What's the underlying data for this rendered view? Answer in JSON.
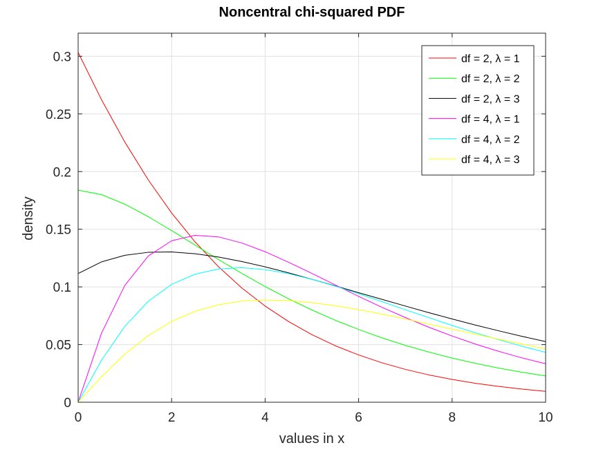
{
  "chart_data": {
    "type": "line",
    "title": "Noncentral chi-squared PDF",
    "xlabel": "values in x",
    "ylabel": "density",
    "xlim": [
      0,
      10
    ],
    "ylim": [
      0,
      0.32
    ],
    "xticks": [
      0,
      2,
      4,
      6,
      8,
      10
    ],
    "xtick_labels": [
      "0",
      "2",
      "4",
      "6",
      "8",
      "10"
    ],
    "yticks": [
      0,
      0.05,
      0.1,
      0.15,
      0.2,
      0.25,
      0.3
    ],
    "ytick_labels": [
      "0",
      "0.05",
      "0.1",
      "0.15",
      "0.2",
      "0.25",
      "0.3"
    ],
    "grid": true,
    "legend_position": "top-right",
    "x": [
      0,
      0.5,
      1,
      1.5,
      2,
      2.5,
      3,
      3.5,
      4,
      4.5,
      5,
      5.5,
      6,
      6.5,
      7,
      7.5,
      8,
      8.5,
      9,
      9.5,
      10
    ],
    "series": [
      {
        "name": "df = 2, λ = 1",
        "color": "#ff0000",
        "values": [
          0.3033,
          0.2623,
          0.2255,
          0.1928,
          0.1641,
          0.1391,
          0.1176,
          0.0991,
          0.0834,
          0.07,
          0.0586,
          0.049,
          0.041,
          0.0342,
          0.0285,
          0.0237,
          0.0198,
          0.0164,
          0.0137,
          0.0114,
          0.0094
        ]
      },
      {
        "name": "df = 2, λ = 2",
        "color": "#00ff00",
        "values": [
          0.1839,
          0.18,
          0.1717,
          0.1609,
          0.1488,
          0.1363,
          0.1238,
          0.1117,
          0.1003,
          0.0897,
          0.08,
          0.0711,
          0.0631,
          0.0558,
          0.0493,
          0.0435,
          0.0383,
          0.0337,
          0.0296,
          0.026,
          0.0228
        ]
      },
      {
        "name": "df = 2, λ = 3",
        "color": "#000000",
        "values": [
          0.1116,
          0.1217,
          0.1274,
          0.13,
          0.1303,
          0.1288,
          0.1259,
          0.122,
          0.1174,
          0.1122,
          0.1066,
          0.1009,
          0.095,
          0.0892,
          0.0834,
          0.0777,
          0.0722,
          0.0669,
          0.0619,
          0.0571,
          0.0526
        ]
      },
      {
        "name": "df = 4, λ = 1",
        "color": "#ff00ff",
        "values": [
          0,
          0.0599,
          0.1014,
          0.1268,
          0.14,
          0.1447,
          0.1434,
          0.1381,
          0.1305,
          0.1214,
          0.1117,
          0.1017,
          0.0918,
          0.0823,
          0.0734,
          0.0651,
          0.0574,
          0.0504,
          0.0441,
          0.0384,
          0.0334
        ]
      },
      {
        "name": "df = 4, λ = 2",
        "color": "#00ffff",
        "values": [
          0,
          0.0364,
          0.0659,
          0.0875,
          0.1022,
          0.111,
          0.1155,
          0.1166,
          0.115,
          0.1115,
          0.1066,
          0.1007,
          0.0941,
          0.0872,
          0.0802,
          0.0734,
          0.0666,
          0.0602,
          0.0542,
          0.0485,
          0.0433
        ]
      },
      {
        "name": "df = 4, λ = 3",
        "color": "#ffff00",
        "values": [
          0,
          0.0221,
          0.0418,
          0.0578,
          0.0701,
          0.0788,
          0.0845,
          0.0877,
          0.0887,
          0.0882,
          0.0864,
          0.0837,
          0.0803,
          0.0764,
          0.0722,
          0.0678,
          0.0634,
          0.059,
          0.0546,
          0.0504,
          0.0463
        ]
      }
    ]
  }
}
